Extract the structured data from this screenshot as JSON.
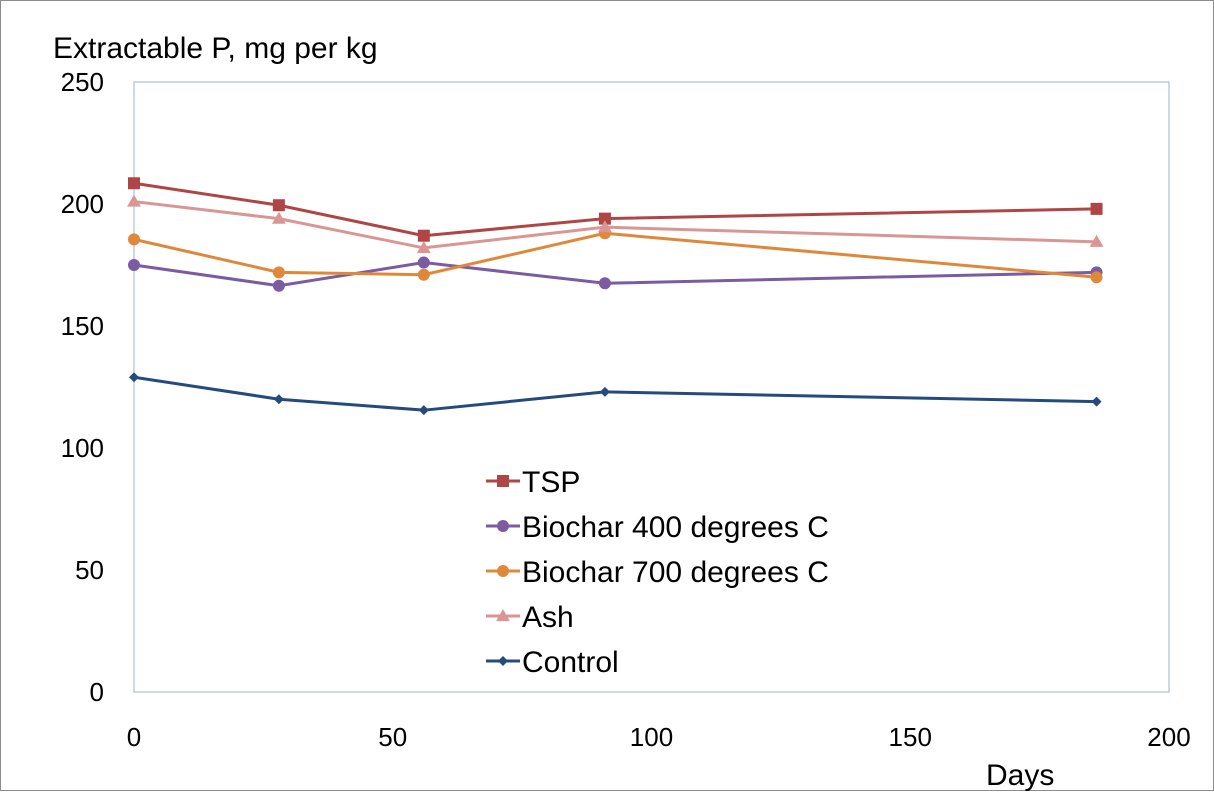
{
  "chart_data": {
    "type": "line",
    "ylabel": "Extractable P, mg per kg",
    "xlabel": "Days",
    "xlim": [
      0,
      200
    ],
    "ylim": [
      0,
      250
    ],
    "xticks": [
      0,
      50,
      100,
      150,
      200
    ],
    "yticks": [
      0,
      50,
      100,
      150,
      200,
      250
    ],
    "grid": false,
    "legend_position": "center",
    "series": [
      {
        "name": "TSP",
        "color": "#B04545",
        "marker": "square",
        "x": [
          0,
          28,
          56,
          91,
          186
        ],
        "y": [
          208.5,
          199.5,
          187,
          194,
          198
        ]
      },
      {
        "name": "Biochar 400 degrees C",
        "color": "#7B5BA1",
        "marker": "circle",
        "x": [
          0,
          28,
          56,
          91,
          186
        ],
        "y": [
          175,
          166.5,
          176,
          167.5,
          172
        ]
      },
      {
        "name": "Biochar 700 degrees C",
        "color": "#E0883A",
        "marker": "circle",
        "x": [
          0,
          28,
          56,
          91,
          186
        ],
        "y": [
          185.5,
          172,
          171,
          188,
          170
        ]
      },
      {
        "name": "Ash",
        "color": "#D99694",
        "marker": "triangle",
        "x": [
          0,
          28,
          56,
          91,
          186
        ],
        "y": [
          201,
          194,
          182,
          190.5,
          184.5
        ]
      },
      {
        "name": "Control",
        "color": "#254A7D",
        "marker": "diamond",
        "x": [
          0,
          28,
          56,
          91,
          186
        ],
        "y": [
          129,
          120,
          115.5,
          123,
          119
        ]
      }
    ]
  },
  "colors": {
    "plot_border": "#9DB3CD",
    "frame_border": "#8C8C8C"
  }
}
